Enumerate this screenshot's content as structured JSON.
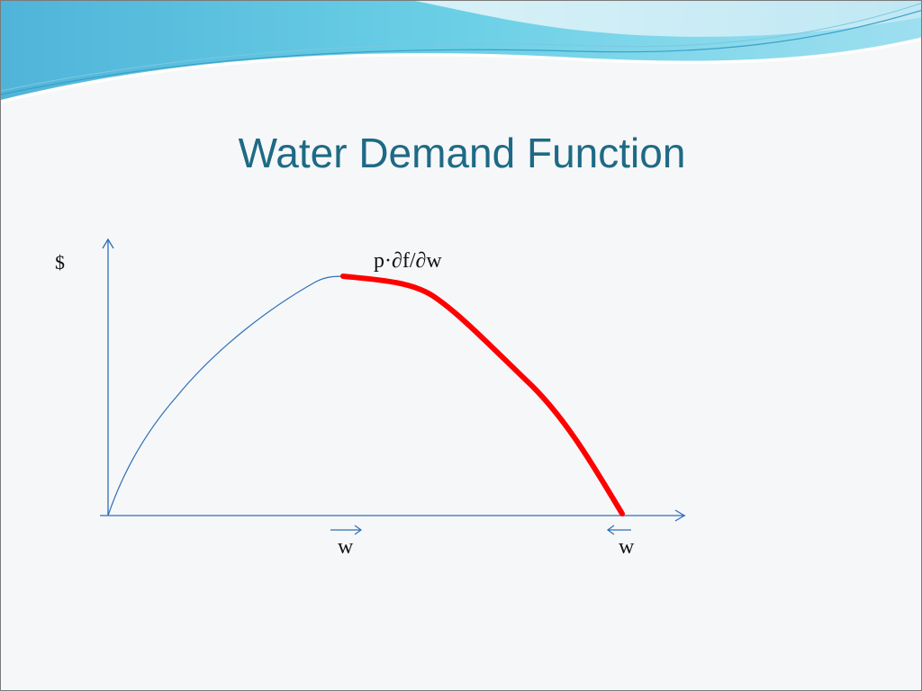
{
  "slide": {
    "title": "Water Demand Function",
    "y_axis_label": "$",
    "curve_label": "p·∂f/∂w",
    "marker_left_label": "w",
    "marker_right_label": "w"
  },
  "colors": {
    "title": "#1e6a85",
    "axis": "#2d6fb6",
    "demand_segment": "#ff0000"
  }
}
